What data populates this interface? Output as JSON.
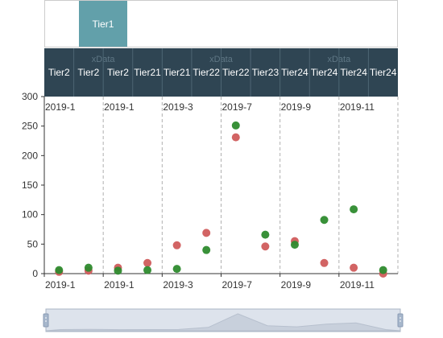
{
  "tier1": {
    "label": "Tier1"
  },
  "header": {
    "group_label": "xData",
    "cells": [
      "Tier2",
      "Tier2",
      "Tier2",
      "Tier21",
      "Tier21",
      "Tier22",
      "Tier22",
      "Tier23",
      "Tier24",
      "Tier24",
      "Tier24",
      "Tier24"
    ]
  },
  "slider": {
    "label_left": "",
    "label_right": ""
  },
  "chart_data": {
    "type": "scatter",
    "title": "",
    "xlabel": "",
    "ylabel": "",
    "ylim": [
      0,
      300
    ],
    "yticks": [
      0,
      50,
      100,
      150,
      200,
      250,
      300
    ],
    "xticks": [
      "2019-1",
      "2019-1",
      "2019-3",
      "2019-7",
      "2019-9",
      "2019-11"
    ],
    "x": [
      "2018-12",
      "2019-01",
      "2019-02",
      "2019-03",
      "2019-04",
      "2019-05",
      "2019-06",
      "2019-07",
      "2019-08",
      "2019-09",
      "2019-10",
      "2019-11"
    ],
    "series": [
      {
        "color": "#d05c5c",
        "values": [
          3,
          5,
          10,
          18,
          48,
          69,
          231,
          46,
          55,
          18,
          10,
          0
        ]
      },
      {
        "color": "#2e8b2e",
        "values": [
          6,
          10,
          5,
          6,
          8,
          40,
          251,
          66,
          49,
          91,
          109,
          6
        ]
      }
    ],
    "grid": "vertical-dashed",
    "legend": "none",
    "colors": {
      "header_bg": "#2f4553",
      "tab_active": "#62a0aa",
      "slider_bg": "#dde3ec"
    }
  }
}
